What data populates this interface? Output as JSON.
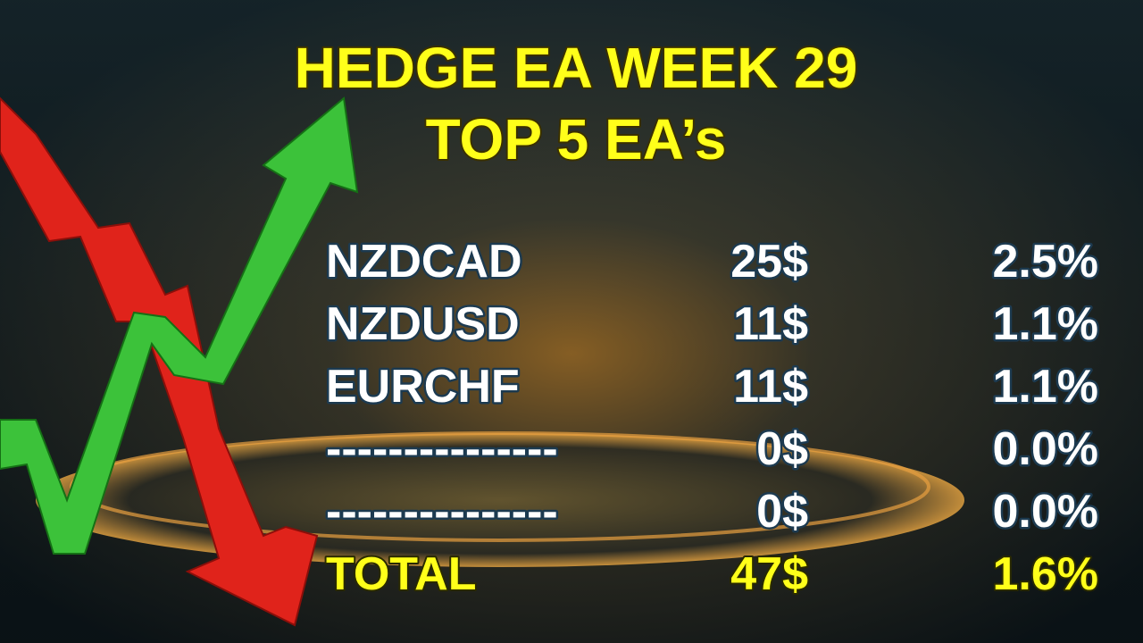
{
  "header": {
    "title": "HEDGE EA WEEK 29",
    "subtitle": "TOP 5 EA’s"
  },
  "table": {
    "rows": [
      [
        "NZDCAD",
        "25$",
        "2.5%"
      ],
      [
        "NZDUSD",
        "11$",
        "1.1%"
      ],
      [
        "EURCHF",
        "11$",
        "1.1%"
      ],
      [
        "---------------",
        "0$",
        "0.0%"
      ],
      [
        "---------------",
        "0$",
        "0.0%"
      ]
    ],
    "total": [
      "TOTAL",
      "47$",
      "1.6%"
    ]
  }
}
